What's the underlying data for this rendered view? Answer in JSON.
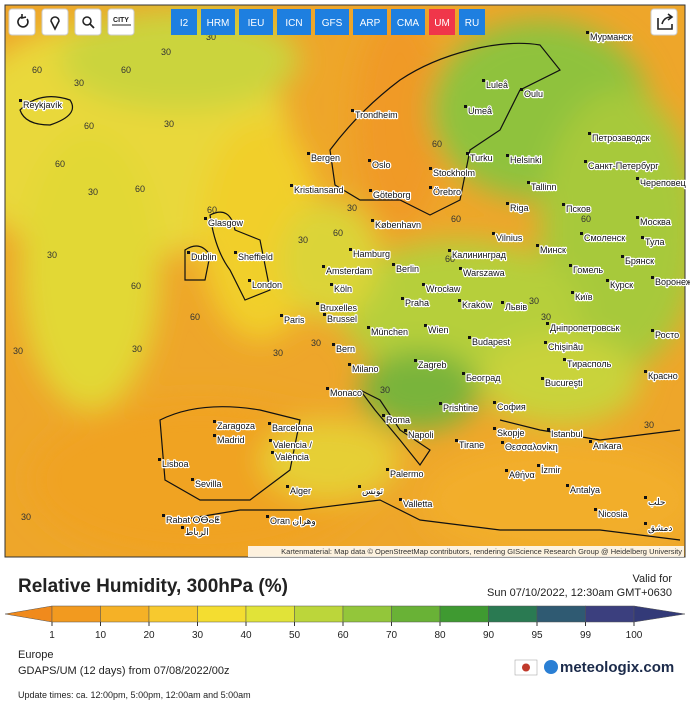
{
  "toolbar": {
    "city_button": "CITY",
    "models": [
      "I2",
      "HRM",
      "IEU",
      "ICN",
      "GFS",
      "ARP",
      "CMA",
      "UM",
      "RU"
    ],
    "active": "UM"
  },
  "map": {
    "attribution": "Kartenmaterial: Map data © OpenStreetMap contributors, rendering GIScience Research Group @ Heidelberg University",
    "cities": [
      "Reykjavík",
      "Мурманск",
      "Luleå",
      "Oulu",
      "Trondheim",
      "Umeå",
      "Петрозаводск",
      "Bergen",
      "Oslo",
      "Turku",
      "Helsinki",
      "Санкт-Петербург",
      "Kristiansand",
      "Göteborg",
      "Stockholm",
      "Örebro",
      "Tallinn",
      "Череповец",
      "Glasgow",
      "Riga",
      "Псков",
      "København",
      "Vilnius",
      "Смоленск",
      "Москва",
      "Dublin",
      "Sheffield",
      "Hamburg",
      "Калининград",
      "Минск",
      "Тула",
      "Amsterdam",
      "Berlin",
      "Warszawa",
      "Гомель",
      "Брянск",
      "London",
      "Köln",
      "Wrocław",
      "Kraków",
      "Київ",
      "Курск",
      "Воронеж",
      "Bruxelles",
      "Brussel",
      "Praha",
      "Paris",
      "München",
      "Wien",
      "Дніпропетровськ",
      "Bern",
      "Budapest",
      "Chişinău",
      "Росто",
      "Milano",
      "Zagreb",
      "Тирасполь",
      "Београд",
      "Monaco",
      "Bucureşti",
      "Красно",
      "Prishtine",
      "София",
      "Roma",
      "Napoli",
      "Skopje",
      "Istanbul",
      "Tirane",
      "Zaragoza",
      "Barcelona",
      "Madrid",
      "Valencia /",
      "València",
      "Ankara",
      "Θεσσαλονίκη",
      "İzmir",
      "Αθήνα",
      "Lisboa",
      "Sevilla",
      "Alger",
      "Palermo",
      "تونس",
      "Antalya",
      "Valletta",
      "Rabat ⵔⴱⴰⵟ",
      "الرباط",
      "Oran وهران",
      "Nicosia",
      "حلب",
      "دمشق",
      "Львів"
    ],
    "contour_labels": [
      60,
      30,
      30,
      60,
      30,
      60,
      30,
      60,
      30,
      60,
      60,
      30,
      30,
      30,
      60,
      30,
      30,
      60,
      30,
      60,
      30,
      60,
      30,
      30,
      30,
      60,
      30,
      60,
      30,
      60
    ]
  },
  "legend": {
    "title": "Relative Humidity, 300hPa (%)",
    "valid_label": "Valid for",
    "valid_time": "Sun 07/10/2022, 12:30am GMT+0630",
    "ticks": [
      1,
      10,
      20,
      30,
      40,
      50,
      60,
      70,
      80,
      90,
      95,
      99,
      100
    ],
    "under_color": "#f08a1c",
    "colors": [
      "#f29a1f",
      "#f5b126",
      "#f7c92e",
      "#f4dd30",
      "#e1e338",
      "#bcd63a",
      "#93c63a",
      "#69b236",
      "#3f9a31",
      "#2a7a52",
      "#2f5a72",
      "#3b3f7e"
    ],
    "over_color": "#333a78"
  },
  "footer": {
    "region": "Europe",
    "model_run": "GDAPS/UM (12 days) from 07/08/2022/00z",
    "brand": "meteologix.com",
    "update_times": "Update times: ca. 12:00pm, 5:00pm, 12:00am and 5:00am"
  }
}
